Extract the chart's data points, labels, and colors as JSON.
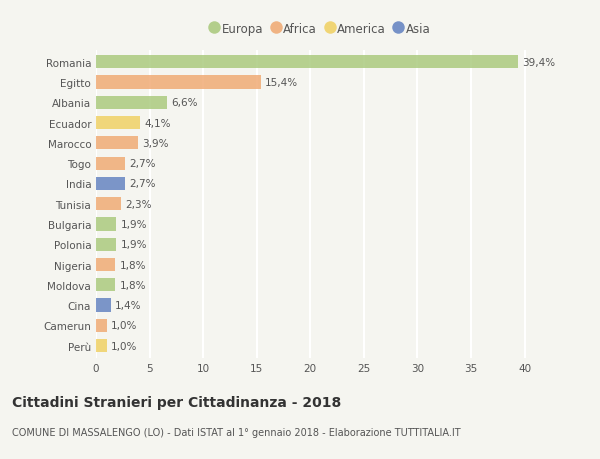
{
  "countries": [
    "Romania",
    "Egitto",
    "Albania",
    "Ecuador",
    "Marocco",
    "Togo",
    "India",
    "Tunisia",
    "Bulgaria",
    "Polonia",
    "Nigeria",
    "Moldova",
    "Cina",
    "Camerun",
    "Perù"
  ],
  "values": [
    39.4,
    15.4,
    6.6,
    4.1,
    3.9,
    2.7,
    2.7,
    2.3,
    1.9,
    1.9,
    1.8,
    1.8,
    1.4,
    1.0,
    1.0
  ],
  "labels": [
    "39,4%",
    "15,4%",
    "6,6%",
    "4,1%",
    "3,9%",
    "2,7%",
    "2,7%",
    "2,3%",
    "1,9%",
    "1,9%",
    "1,8%",
    "1,8%",
    "1,4%",
    "1,0%",
    "1,0%"
  ],
  "continents": [
    "Europa",
    "Africa",
    "Europa",
    "America",
    "Africa",
    "Africa",
    "Asia",
    "Africa",
    "Europa",
    "Europa",
    "Africa",
    "Europa",
    "Asia",
    "Africa",
    "America"
  ],
  "continent_colors": {
    "Europa": "#a8c87a",
    "Africa": "#f0a870",
    "America": "#f0d060",
    "Asia": "#6080c0"
  },
  "legend_order": [
    "Europa",
    "Africa",
    "America",
    "Asia"
  ],
  "title": "Cittadini Stranieri per Cittadinanza - 2018",
  "subtitle": "COMUNE DI MASSALENGO (LO) - Dati ISTAT al 1° gennaio 2018 - Elaborazione TUTTITALIA.IT",
  "xlim": [
    0,
    42
  ],
  "xticks": [
    0,
    5,
    10,
    15,
    20,
    25,
    30,
    35,
    40
  ],
  "background_color": "#f5f5f0",
  "grid_color": "#ffffff",
  "bar_height": 0.65,
  "label_fontsize": 7.5,
  "title_fontsize": 10,
  "subtitle_fontsize": 7,
  "tick_fontsize": 7.5,
  "legend_fontsize": 8.5
}
